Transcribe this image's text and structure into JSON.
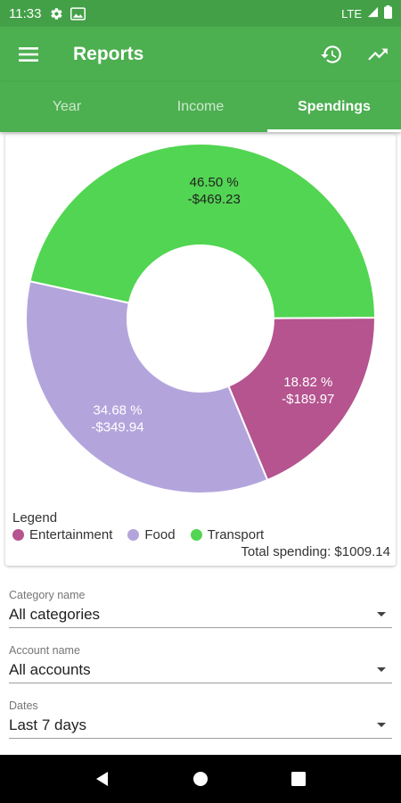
{
  "status": {
    "time": "11:33",
    "network": "LTE",
    "icons": [
      "gear-icon",
      "image-icon",
      "signal-icon",
      "battery-icon"
    ]
  },
  "app_bar": {
    "title": "Reports",
    "actions": [
      "history-icon",
      "trending-icon"
    ]
  },
  "tabs": [
    {
      "label": "Year",
      "active": false
    },
    {
      "label": "Income",
      "active": false
    },
    {
      "label": "Spendings",
      "active": true
    }
  ],
  "chart_data": {
    "type": "pie",
    "style": "donut",
    "slices": [
      {
        "name": "Entertainment",
        "percent": 18.82,
        "percent_label": "18.82 %",
        "amount_label": "-$189.97",
        "color": "#b5548f"
      },
      {
        "name": "Food",
        "percent": 34.68,
        "percent_label": "34.68 %",
        "amount_label": "-$349.94",
        "color": "#b3a5dc"
      },
      {
        "name": "Transport",
        "percent": 46.5,
        "percent_label": "46.50 %",
        "amount_label": "-$469.23",
        "color": "#52d552"
      }
    ],
    "legend_title": "Legend",
    "total_label": "Total spending: $1009.14"
  },
  "filters": {
    "category": {
      "label": "Category name",
      "value": "All categories"
    },
    "account": {
      "label": "Account name",
      "value": "All accounts"
    },
    "dates": {
      "label": "Dates",
      "value": "Last 7 days"
    }
  },
  "colors": {
    "primary": "#4caf50",
    "status_bar": "#43a047"
  }
}
